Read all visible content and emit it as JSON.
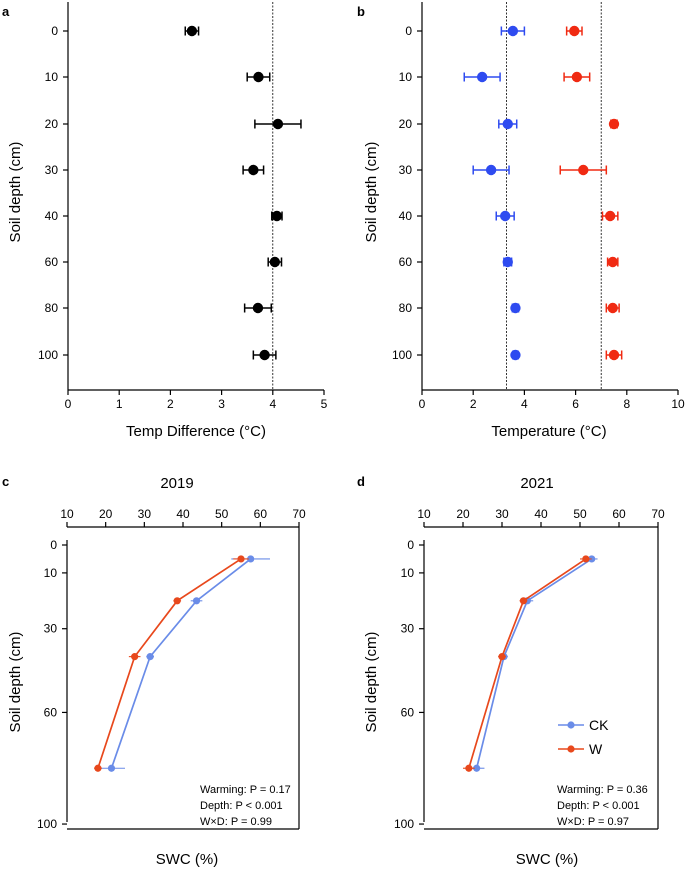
{
  "colors": {
    "black": "#000000",
    "ck": "#2E4BF0",
    "w": "#F02A12",
    "ck_c": "#6A8CE8",
    "w_c": "#E8481C"
  },
  "chart_data": [
    {
      "panel": "a",
      "type": "scatter",
      "orientation": "horizontal-errorbar",
      "title": "",
      "xlabel": "Temp Difference (°C)",
      "ylabel": "Soil depth (cm)",
      "xlim": [
        0,
        5
      ],
      "xticks": [
        0,
        1,
        2,
        3,
        4,
        5
      ],
      "ticks": [
        "0",
        "10",
        "20",
        "30",
        "40",
        "60",
        "80",
        "100"
      ],
      "vline": 4.0,
      "series": [
        {
          "name": "Difference",
          "color": "#000000",
          "values": [
            2.42,
            3.72,
            4.1,
            3.62,
            4.08,
            4.04,
            3.71,
            3.84
          ],
          "errors": [
            0.13,
            0.22,
            0.45,
            0.2,
            0.1,
            0.13,
            0.26,
            0.22
          ]
        }
      ]
    },
    {
      "panel": "b",
      "type": "scatter",
      "orientation": "horizontal-errorbar",
      "title": "",
      "xlabel": "Temperature (°C)",
      "ylabel": "Soil depth (cm)",
      "xlim": [
        0,
        10
      ],
      "xticks": [
        0,
        2,
        4,
        6,
        8,
        10
      ],
      "ticks": [
        "0",
        "10",
        "20",
        "30",
        "40",
        "60",
        "80",
        "100"
      ],
      "vlines": [
        3.3,
        7.0
      ],
      "series": [
        {
          "name": "CK",
          "color": "#2E4BF0",
          "values": [
            3.55,
            2.35,
            3.35,
            2.7,
            3.25,
            3.35,
            3.65,
            3.65
          ],
          "errors": [
            0.45,
            0.7,
            0.35,
            0.7,
            0.35,
            0.15,
            0.12,
            0.1
          ]
        },
        {
          "name": "W",
          "color": "#F02A12",
          "values": [
            5.95,
            6.05,
            7.5,
            6.3,
            7.35,
            7.45,
            7.45,
            7.5
          ],
          "errors": [
            0.3,
            0.5,
            0.12,
            0.9,
            0.3,
            0.2,
            0.25,
            0.3
          ]
        }
      ]
    },
    {
      "panel": "c",
      "type": "line",
      "title": "2019",
      "xlabel": "SWC (%)",
      "ylabel": "Soil depth (cm)",
      "xlim": [
        10,
        70
      ],
      "xticks": [
        10,
        20,
        30,
        40,
        50,
        60,
        70
      ],
      "ylim": [
        0,
        105
      ],
      "yticks": [
        0,
        10,
        30,
        60,
        100
      ],
      "stats": [
        "Warming: P = 0.17",
        "Depth:  P  <  0.001",
        "W×D: P = 0.99"
      ],
      "series": [
        {
          "name": "CK",
          "color": "#6A8CE8",
          "x": [
            57.5,
            43.5,
            31.5,
            21.5
          ],
          "y": [
            5,
            20,
            40,
            80
          ],
          "errors": [
            5.0,
            1.5,
            1.0,
            3.5
          ]
        },
        {
          "name": "W",
          "color": "#E8481C",
          "x": [
            55.0,
            38.5,
            27.5,
            18.0
          ],
          "y": [
            5,
            20,
            40,
            80
          ],
          "errors": [
            2.0,
            1.0,
            1.5,
            1.0
          ]
        }
      ]
    },
    {
      "panel": "d",
      "type": "line",
      "title": "2021",
      "xlabel": "SWC (%)",
      "ylabel": "Soil depth (cm)",
      "xlim": [
        10,
        70
      ],
      "xticks": [
        10,
        20,
        30,
        40,
        50,
        60,
        70
      ],
      "ylim": [
        0,
        105
      ],
      "yticks": [
        0,
        10,
        30,
        60,
        100
      ],
      "stats": [
        "Warming: P = 0.36",
        "Depth:  P  <  0.001",
        "W×D: P = 0.97"
      ],
      "legend": {
        "position": "right-middle",
        "entries": [
          "CK",
          "W"
        ]
      },
      "series": [
        {
          "name": "CK",
          "color": "#6A8CE8",
          "x": [
            53.0,
            36.5,
            30.5,
            23.5
          ],
          "y": [
            5,
            20,
            40,
            80
          ],
          "errors": [
            1.5,
            1.5,
            1.0,
            2.0
          ]
        },
        {
          "name": "W",
          "color": "#E8481C",
          "x": [
            51.5,
            35.5,
            30.0,
            21.5
          ],
          "y": [
            5,
            20,
            40,
            80
          ],
          "errors": [
            1.5,
            1.0,
            1.0,
            1.5
          ]
        }
      ]
    }
  ]
}
